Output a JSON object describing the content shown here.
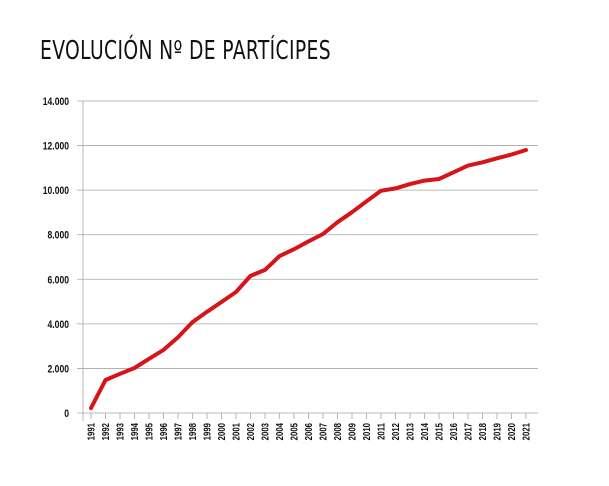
{
  "title": "EVOLUCIÓN Nº DE PARTÍCIPES",
  "colors": {
    "line": "#d7141a",
    "grid": "#a6a6a6",
    "text": "#111111",
    "background": "#ffffff"
  },
  "chart_data": {
    "type": "line",
    "title": "EVOLUCIÓN Nº DE PARTÍCIPES",
    "xlabel": "",
    "ylabel": "",
    "ylim": [
      0,
      14000
    ],
    "yticks": [
      "0",
      "2.000",
      "4.000",
      "6.000",
      "8.000",
      "10.000",
      "12.000",
      "14.000"
    ],
    "ytick_values": [
      0,
      2000,
      4000,
      6000,
      8000,
      10000,
      12000,
      14000
    ],
    "grid": true,
    "legend": null,
    "categories": [
      "1991",
      "1992",
      "1993",
      "1994",
      "1995",
      "1996",
      "1997",
      "1998",
      "1999",
      "2000",
      "2001",
      "2002",
      "2003",
      "2004",
      "2005",
      "2006",
      "2007",
      "2008",
      "2009",
      "2010",
      "2011",
      "2012",
      "2013",
      "2014",
      "2015",
      "2016",
      "2017",
      "2018",
      "2019",
      "2020",
      "2021"
    ],
    "series": [
      {
        "name": "Nº de partícipes",
        "color": "#d7141a",
        "values": [
          220,
          1480,
          1760,
          2020,
          2430,
          2830,
          3400,
          4080,
          4540,
          4980,
          5430,
          6150,
          6420,
          7040,
          7350,
          7700,
          8030,
          8560,
          9010,
          9500,
          9970,
          10080,
          10270,
          10430,
          10500,
          10800,
          11100,
          11250,
          11430,
          11600,
          11800
        ]
      }
    ]
  }
}
